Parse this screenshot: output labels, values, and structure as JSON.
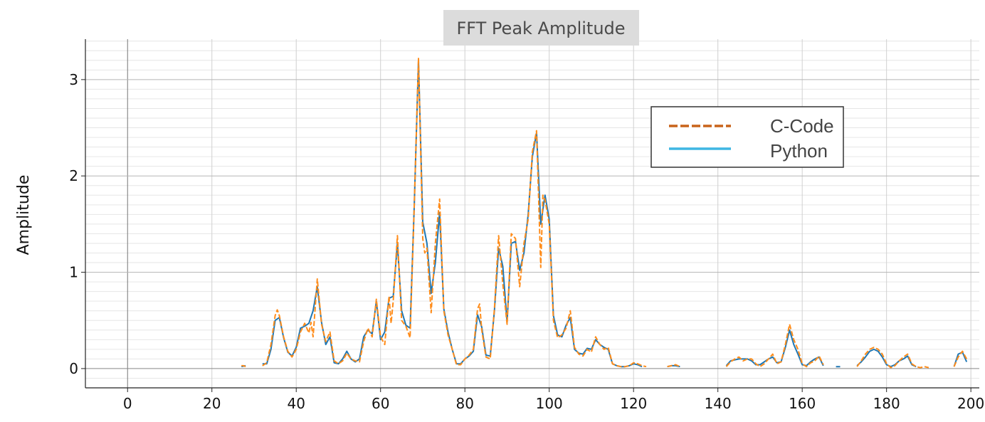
{
  "chart_data": {
    "type": "line",
    "title": "FFT Peak Amplitude",
    "ylabel": "Amplitude",
    "xlabel": "",
    "xlim": [
      -10,
      202
    ],
    "ylim": [
      -0.2,
      3.42
    ],
    "xticks": [
      0,
      20,
      40,
      60,
      80,
      100,
      120,
      140,
      160,
      180,
      200
    ],
    "yticks": [
      0,
      1,
      2,
      3
    ],
    "grid": true,
    "legend_position": "upper-right",
    "series": [
      {
        "name": "C-Code",
        "color": "#ff8c1a",
        "style": "dashed",
        "points": [
          [
            27,
            0.03
          ],
          [
            27.5,
            0.03
          ],
          [
            28,
            0.02
          ],
          null,
          [
            32,
            0.03
          ],
          [
            33,
            0.06
          ],
          [
            34,
            0.25
          ],
          [
            35,
            0.55
          ],
          [
            35.5,
            0.61
          ],
          [
            36,
            0.55
          ],
          [
            37,
            0.33
          ],
          [
            38,
            0.18
          ],
          [
            39,
            0.12
          ],
          [
            40,
            0.2
          ],
          [
            41,
            0.38
          ],
          [
            42,
            0.47
          ],
          [
            43,
            0.37
          ],
          [
            43.5,
            0.48
          ],
          [
            44,
            0.33
          ],
          [
            45,
            0.93
          ],
          [
            46,
            0.46
          ],
          [
            47,
            0.28
          ],
          [
            48,
            0.38
          ],
          [
            49,
            0.08
          ],
          [
            50,
            0.05
          ],
          [
            51,
            0.08
          ],
          [
            52,
            0.16
          ],
          [
            53,
            0.1
          ],
          [
            54,
            0.08
          ],
          [
            55,
            0.07
          ],
          [
            56,
            0.28
          ],
          [
            57,
            0.42
          ],
          [
            58,
            0.33
          ],
          [
            59,
            0.72
          ],
          [
            60,
            0.33
          ],
          [
            61,
            0.25
          ],
          [
            62,
            0.75
          ],
          [
            62.5,
            0.47
          ],
          [
            63,
            0.7
          ],
          [
            64,
            1.38
          ],
          [
            65,
            0.5
          ],
          [
            66,
            0.44
          ],
          [
            67,
            0.32
          ],
          [
            68,
            1.7
          ],
          [
            69,
            3.22
          ],
          [
            70,
            1.35
          ],
          [
            70.5,
            1.2
          ],
          [
            71,
            1.25
          ],
          [
            72,
            0.58
          ],
          [
            73,
            1.3
          ],
          [
            74,
            1.76
          ],
          [
            75,
            0.6
          ],
          [
            76,
            0.35
          ],
          [
            77,
            0.2
          ],
          [
            78,
            0.04
          ],
          [
            79,
            0.04
          ],
          [
            80,
            0.1
          ],
          [
            81,
            0.14
          ],
          [
            82,
            0.2
          ],
          [
            83,
            0.62
          ],
          [
            83.5,
            0.67
          ],
          [
            84,
            0.4
          ],
          [
            85,
            0.12
          ],
          [
            86,
            0.1
          ],
          [
            87,
            0.62
          ],
          [
            88,
            1.38
          ],
          [
            89,
            0.88
          ],
          [
            90,
            0.46
          ],
          [
            91,
            1.4
          ],
          [
            92,
            1.35
          ],
          [
            93,
            0.85
          ],
          [
            94,
            1.3
          ],
          [
            95,
            1.55
          ],
          [
            96,
            2.25
          ],
          [
            97,
            2.47
          ],
          [
            98,
            1.05
          ],
          [
            98.5,
            1.8
          ],
          [
            99,
            1.75
          ],
          [
            100,
            1.5
          ],
          [
            101,
            0.5
          ],
          [
            102,
            0.32
          ],
          [
            103,
            0.35
          ],
          [
            104,
            0.42
          ],
          [
            105,
            0.6
          ],
          [
            106,
            0.22
          ],
          [
            107,
            0.15
          ],
          [
            108,
            0.13
          ],
          [
            109,
            0.2
          ],
          [
            110,
            0.17
          ],
          [
            111,
            0.33
          ],
          [
            112,
            0.25
          ],
          [
            113,
            0.2
          ],
          [
            114,
            0.22
          ],
          [
            115,
            0.05
          ],
          [
            116,
            0.03
          ],
          [
            117,
            0.02
          ],
          [
            118,
            0.02
          ],
          [
            119,
            0.03
          ],
          [
            120,
            0.06
          ],
          [
            121,
            0.05
          ],
          [
            122,
            0.03
          ],
          [
            123,
            0.02
          ],
          null,
          [
            128,
            0.02
          ],
          [
            129,
            0.03
          ],
          [
            130,
            0.04
          ],
          [
            131,
            0.02
          ],
          null,
          [
            142,
            0.02
          ],
          [
            143,
            0.07
          ],
          [
            144,
            0.1
          ],
          [
            145,
            0.12
          ],
          [
            146,
            0.08
          ],
          [
            147,
            0.1
          ],
          [
            148,
            0.1
          ],
          [
            149,
            0.05
          ],
          [
            150,
            0.02
          ],
          [
            151,
            0.05
          ],
          [
            152,
            0.1
          ],
          [
            153,
            0.15
          ],
          [
            154,
            0.05
          ],
          [
            155,
            0.07
          ],
          [
            156,
            0.25
          ],
          [
            157,
            0.46
          ],
          [
            158,
            0.3
          ],
          [
            159,
            0.2
          ],
          [
            160,
            0.05
          ],
          [
            161,
            0.02
          ],
          [
            162,
            0.06
          ],
          [
            163,
            0.08
          ],
          [
            164,
            0.13
          ],
          [
            165,
            0.04
          ],
          null,
          [
            173,
            0.02
          ],
          [
            174,
            0.08
          ],
          [
            175,
            0.15
          ],
          [
            176,
            0.2
          ],
          [
            177,
            0.22
          ],
          [
            178,
            0.2
          ],
          [
            179,
            0.15
          ],
          [
            180,
            0.05
          ],
          [
            181,
            0.01
          ],
          [
            182,
            0.03
          ],
          [
            183,
            0.08
          ],
          [
            184,
            0.12
          ],
          [
            185,
            0.15
          ],
          [
            186,
            0.05
          ],
          [
            187,
            0.02
          ],
          [
            188,
            0.01
          ],
          [
            189,
            0.02
          ],
          [
            190,
            0.01
          ],
          null,
          [
            196,
            0.02
          ],
          [
            197,
            0.12
          ],
          [
            198,
            0.18
          ],
          [
            199,
            0.1
          ]
        ]
      },
      {
        "name": "Python",
        "color": "#1f77b4",
        "legend_color": "#3fb6e3",
        "style": "solid",
        "points": [
          [
            27,
            0.02
          ],
          [
            28,
            0.03
          ],
          null,
          [
            32,
            0.05
          ],
          [
            33,
            0.05
          ],
          [
            34,
            0.2
          ],
          [
            35,
            0.5
          ],
          [
            36,
            0.53
          ],
          [
            37,
            0.32
          ],
          [
            38,
            0.17
          ],
          [
            39,
            0.13
          ],
          [
            40,
            0.22
          ],
          [
            41,
            0.42
          ],
          [
            42,
            0.44
          ],
          [
            43,
            0.47
          ],
          [
            44,
            0.6
          ],
          [
            45,
            0.85
          ],
          [
            46,
            0.48
          ],
          [
            47,
            0.25
          ],
          [
            48,
            0.33
          ],
          [
            49,
            0.06
          ],
          [
            50,
            0.05
          ],
          [
            51,
            0.1
          ],
          [
            52,
            0.18
          ],
          [
            53,
            0.1
          ],
          [
            54,
            0.07
          ],
          [
            55,
            0.1
          ],
          [
            56,
            0.33
          ],
          [
            57,
            0.4
          ],
          [
            58,
            0.36
          ],
          [
            59,
            0.7
          ],
          [
            60,
            0.3
          ],
          [
            61,
            0.38
          ],
          [
            62,
            0.73
          ],
          [
            63,
            0.75
          ],
          [
            64,
            1.3
          ],
          [
            65,
            0.6
          ],
          [
            66,
            0.45
          ],
          [
            67,
            0.42
          ],
          [
            68,
            1.7
          ],
          [
            69,
            3.2
          ],
          [
            70,
            1.52
          ],
          [
            71,
            1.3
          ],
          [
            72,
            0.78
          ],
          [
            73,
            1.1
          ],
          [
            74,
            1.62
          ],
          [
            75,
            0.62
          ],
          [
            76,
            0.38
          ],
          [
            77,
            0.2
          ],
          [
            78,
            0.05
          ],
          [
            79,
            0.05
          ],
          [
            80,
            0.1
          ],
          [
            81,
            0.13
          ],
          [
            82,
            0.18
          ],
          [
            83,
            0.56
          ],
          [
            84,
            0.43
          ],
          [
            85,
            0.14
          ],
          [
            86,
            0.13
          ],
          [
            87,
            0.6
          ],
          [
            88,
            1.25
          ],
          [
            89,
            1.06
          ],
          [
            90,
            0.48
          ],
          [
            91,
            1.3
          ],
          [
            92,
            1.32
          ],
          [
            93,
            1.02
          ],
          [
            94,
            1.2
          ],
          [
            95,
            1.6
          ],
          [
            96,
            2.2
          ],
          [
            97,
            2.45
          ],
          [
            98,
            1.5
          ],
          [
            99,
            1.8
          ],
          [
            100,
            1.55
          ],
          [
            101,
            0.55
          ],
          [
            102,
            0.35
          ],
          [
            103,
            0.33
          ],
          [
            104,
            0.45
          ],
          [
            105,
            0.53
          ],
          [
            106,
            0.2
          ],
          [
            107,
            0.16
          ],
          [
            108,
            0.15
          ],
          [
            109,
            0.21
          ],
          [
            110,
            0.2
          ],
          [
            111,
            0.3
          ],
          [
            112,
            0.25
          ],
          [
            113,
            0.22
          ],
          [
            114,
            0.2
          ],
          [
            115,
            0.05
          ],
          [
            116,
            0.03
          ],
          [
            117,
            0.02
          ],
          [
            118,
            0.02
          ],
          [
            119,
            0.03
          ],
          [
            120,
            0.05
          ],
          [
            121,
            0.04
          ],
          [
            122,
            0.02
          ],
          null,
          [
            128,
            0.02
          ],
          [
            129,
            0.03
          ],
          [
            130,
            0.03
          ],
          [
            131,
            0.02
          ],
          null,
          [
            142,
            0.03
          ],
          [
            143,
            0.08
          ],
          [
            144,
            0.09
          ],
          [
            145,
            0.1
          ],
          [
            146,
            0.1
          ],
          [
            147,
            0.1
          ],
          [
            148,
            0.08
          ],
          [
            149,
            0.04
          ],
          [
            150,
            0.04
          ],
          [
            151,
            0.07
          ],
          [
            152,
            0.1
          ],
          [
            153,
            0.12
          ],
          [
            154,
            0.06
          ],
          [
            155,
            0.07
          ],
          [
            156,
            0.22
          ],
          [
            157,
            0.4
          ],
          [
            158,
            0.25
          ],
          [
            159,
            0.15
          ],
          [
            160,
            0.04
          ],
          [
            161,
            0.03
          ],
          [
            162,
            0.07
          ],
          [
            163,
            0.1
          ],
          [
            164,
            0.12
          ],
          [
            165,
            0.03
          ],
          null,
          [
            168,
            0.02
          ],
          [
            169,
            0.02
          ],
          null,
          [
            173,
            0.03
          ],
          [
            174,
            0.07
          ],
          [
            175,
            0.12
          ],
          [
            176,
            0.18
          ],
          [
            177,
            0.2
          ],
          [
            178,
            0.18
          ],
          [
            179,
            0.12
          ],
          [
            180,
            0.04
          ],
          [
            181,
            0.02
          ],
          [
            182,
            0.04
          ],
          [
            183,
            0.08
          ],
          [
            184,
            0.1
          ],
          [
            185,
            0.13
          ],
          [
            186,
            0.04
          ],
          [
            187,
            0.02
          ],
          null,
          [
            196,
            0.02
          ],
          [
            197,
            0.15
          ],
          [
            198,
            0.17
          ],
          [
            199,
            0.07
          ]
        ]
      }
    ]
  }
}
